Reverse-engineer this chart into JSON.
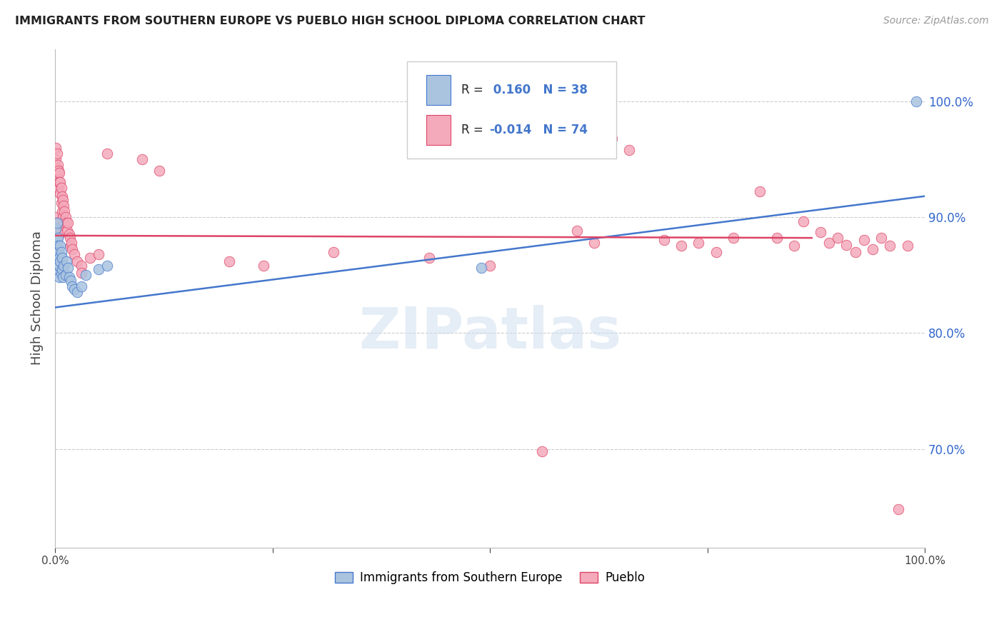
{
  "title": "IMMIGRANTS FROM SOUTHERN EUROPE VS PUEBLO HIGH SCHOOL DIPLOMA CORRELATION CHART",
  "source": "Source: ZipAtlas.com",
  "ylabel": "High School Diploma",
  "legend_blue_label": "Immigrants from Southern Europe",
  "legend_pink_label": "Pueblo",
  "blue_color": "#aac4e0",
  "pink_color": "#f4aabb",
  "blue_line_color": "#4477cc",
  "pink_line_color": "#dd4466",
  "right_axis_color": "#3366cc",
  "watermark_text": "ZIPatlas",
  "ytick_labels": [
    "70.0%",
    "80.0%",
    "90.0%",
    "100.0%"
  ],
  "ytick_values": [
    0.7,
    0.8,
    0.9,
    1.0
  ],
  "xlim": [
    0.0,
    1.0
  ],
  "ylim": [
    0.615,
    1.045
  ],
  "blue_r": "0.160",
  "blue_n": "38",
  "pink_r": "-0.014",
  "pink_n": "74",
  "blue_trend_x0": 0.0,
  "blue_trend_y0": 0.822,
  "blue_trend_x1": 1.0,
  "blue_trend_y1": 0.918,
  "pink_trend_x0": 0.0,
  "pink_trend_y0": 0.884,
  "pink_trend_x1": 0.87,
  "pink_trend_y1": 0.882,
  "blue_x": [
    0.001,
    0.001,
    0.001,
    0.002,
    0.002,
    0.002,
    0.003,
    0.003,
    0.003,
    0.003,
    0.004,
    0.004,
    0.004,
    0.005,
    0.005,
    0.005,
    0.006,
    0.006,
    0.007,
    0.007,
    0.008,
    0.008,
    0.009,
    0.01,
    0.012,
    0.013,
    0.015,
    0.016,
    0.018,
    0.02,
    0.022,
    0.025,
    0.03,
    0.035,
    0.05,
    0.06,
    0.49,
    0.99
  ],
  "blue_y": [
    0.89,
    0.88,
    0.875,
    0.895,
    0.88,
    0.87,
    0.882,
    0.875,
    0.87,
    0.865,
    0.87,
    0.86,
    0.852,
    0.865,
    0.858,
    0.848,
    0.875,
    0.862,
    0.87,
    0.852,
    0.865,
    0.855,
    0.848,
    0.858,
    0.85,
    0.862,
    0.856,
    0.848,
    0.845,
    0.84,
    0.838,
    0.835,
    0.84,
    0.85,
    0.855,
    0.858,
    0.856,
    1.0
  ],
  "pink_x": [
    0.001,
    0.001,
    0.001,
    0.001,
    0.002,
    0.002,
    0.002,
    0.003,
    0.003,
    0.003,
    0.004,
    0.004,
    0.005,
    0.005,
    0.005,
    0.006,
    0.006,
    0.007,
    0.007,
    0.008,
    0.008,
    0.009,
    0.009,
    0.01,
    0.01,
    0.011,
    0.012,
    0.013,
    0.014,
    0.015,
    0.016,
    0.017,
    0.018,
    0.019,
    0.02,
    0.022,
    0.025,
    0.03,
    0.03,
    0.04,
    0.05,
    0.06,
    0.1,
    0.12,
    0.2,
    0.24,
    0.32,
    0.43,
    0.5,
    0.56,
    0.6,
    0.62,
    0.64,
    0.66,
    0.7,
    0.72,
    0.74,
    0.76,
    0.78,
    0.81,
    0.83,
    0.85,
    0.86,
    0.88,
    0.89,
    0.9,
    0.91,
    0.92,
    0.93,
    0.94,
    0.95,
    0.96,
    0.97,
    0.98
  ],
  "pink_y": [
    0.96,
    0.95,
    0.94,
    0.9,
    0.955,
    0.942,
    0.895,
    0.945,
    0.938,
    0.89,
    0.94,
    0.925,
    0.938,
    0.93,
    0.885,
    0.93,
    0.92,
    0.925,
    0.912,
    0.918,
    0.905,
    0.915,
    0.9,
    0.91,
    0.895,
    0.905,
    0.9,
    0.895,
    0.888,
    0.895,
    0.885,
    0.882,
    0.875,
    0.878,
    0.872,
    0.868,
    0.862,
    0.858,
    0.852,
    0.865,
    0.868,
    0.955,
    0.95,
    0.94,
    0.862,
    0.858,
    0.87,
    0.865,
    0.858,
    0.698,
    0.888,
    0.878,
    0.968,
    0.958,
    0.88,
    0.875,
    0.878,
    0.87,
    0.882,
    0.922,
    0.882,
    0.875,
    0.896,
    0.887,
    0.878,
    0.882,
    0.876,
    0.87,
    0.88,
    0.872,
    0.882,
    0.875,
    0.648,
    0.875
  ]
}
